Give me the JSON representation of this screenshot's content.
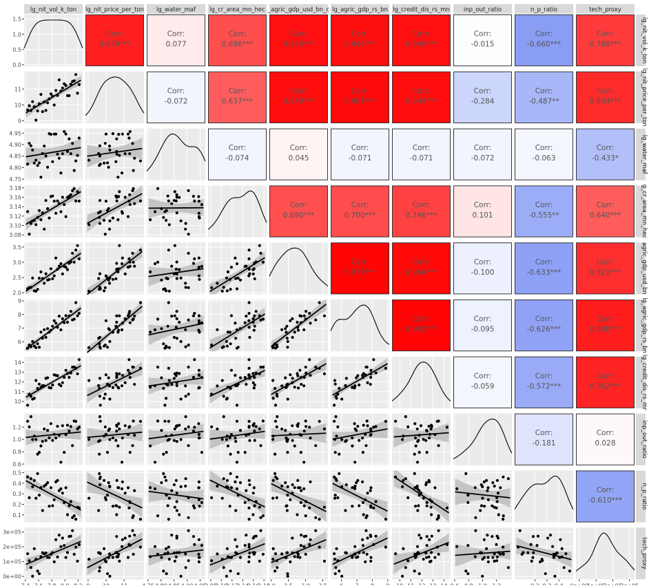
{
  "chart_data": {
    "type": "pair_plot_matrix",
    "variables": [
      "lg_nit_vol_k_ton",
      "lg_nit_price_per_ton",
      "lg_water_maf",
      "lg_cr_area_mn_hec",
      "lg_agric_gdp_usd_bn_c",
      "lg_agric_gdp_rs_bn",
      "lg_credit_dis_rs_mn",
      "inp_out_ratio",
      "n_p_ratio",
      "tech_proxy"
    ],
    "column_labels": [
      "lg_nit_vol_k_ton",
      "lg_nit_price_per_ton",
      "lg_water_maf",
      "lg_cr_area_mn_hec",
      "_agric_gdp_usd_bn_c",
      "lg_agric_gdp_rs_bn",
      "lg_credit_dis_rs_mn",
      "inp_out_ratio",
      "n_p_ratio",
      "tech_proxy"
    ],
    "row_labels": [
      "lg_nit_vol_k_ton",
      "lg_nit_price_per_ton",
      "lg_water_maf",
      "g_cr_area_mn_hec",
      "agric_gdp_usd_bn",
      "lg_agric_gdp_rs_bn",
      "lg_credit_dis_rs_mr",
      "inp_out_ratio",
      "n_p_ratio",
      "tech_proxy"
    ],
    "corr_prefix": "Corr:",
    "correlations": [
      {
        "row": 0,
        "col": 1,
        "value": "0.879***",
        "r": 0.879
      },
      {
        "row": 0,
        "col": 2,
        "value": "0.077",
        "r": 0.077
      },
      {
        "row": 0,
        "col": 3,
        "value": "0.696***",
        "r": 0.696
      },
      {
        "row": 0,
        "col": 4,
        "value": "0.943***",
        "r": 0.943
      },
      {
        "row": 0,
        "col": 5,
        "value": "0.944***",
        "r": 0.944
      },
      {
        "row": 0,
        "col": 6,
        "value": "0.940***",
        "r": 0.94
      },
      {
        "row": 0,
        "col": 7,
        "value": "-0.015",
        "r": -0.015
      },
      {
        "row": 0,
        "col": 8,
        "value": "-0.660***",
        "r": -0.66
      },
      {
        "row": 0,
        "col": 9,
        "value": "0.768***",
        "r": 0.768
      },
      {
        "row": 1,
        "col": 2,
        "value": "-0.072",
        "r": -0.072
      },
      {
        "row": 1,
        "col": 3,
        "value": "0.637***",
        "r": 0.637
      },
      {
        "row": 1,
        "col": 4,
        "value": "0.949***",
        "r": 0.949
      },
      {
        "row": 1,
        "col": 5,
        "value": "0.961***",
        "r": 0.961
      },
      {
        "row": 1,
        "col": 6,
        "value": "0.949***",
        "r": 0.949
      },
      {
        "row": 1,
        "col": 7,
        "value": "-0.284",
        "r": -0.284
      },
      {
        "row": 1,
        "col": 8,
        "value": "-0.487**",
        "r": -0.487
      },
      {
        "row": 1,
        "col": 9,
        "value": "0.834***",
        "r": 0.834
      },
      {
        "row": 2,
        "col": 3,
        "value": "-0.074",
        "r": -0.074
      },
      {
        "row": 2,
        "col": 4,
        "value": "0.045",
        "r": 0.045
      },
      {
        "row": 2,
        "col": 5,
        "value": "-0.071",
        "r": -0.071
      },
      {
        "row": 2,
        "col": 6,
        "value": "-0.071",
        "r": -0.071
      },
      {
        "row": 2,
        "col": 7,
        "value": "-0.072",
        "r": -0.072
      },
      {
        "row": 2,
        "col": 8,
        "value": "-0.063",
        "r": -0.063
      },
      {
        "row": 2,
        "col": 9,
        "value": "-0.433*",
        "r": -0.433
      },
      {
        "row": 3,
        "col": 4,
        "value": "0.690***",
        "r": 0.69
      },
      {
        "row": 3,
        "col": 5,
        "value": "0.700***",
        "r": 0.7
      },
      {
        "row": 3,
        "col": 6,
        "value": "0.746***",
        "r": 0.746
      },
      {
        "row": 3,
        "col": 7,
        "value": "0.101",
        "r": 0.101
      },
      {
        "row": 3,
        "col": 8,
        "value": "-0.555**",
        "r": -0.555
      },
      {
        "row": 3,
        "col": 9,
        "value": "0.640***",
        "r": 0.64
      },
      {
        "row": 4,
        "col": 5,
        "value": "0.979***",
        "r": 0.979
      },
      {
        "row": 4,
        "col": 6,
        "value": "0.964***",
        "r": 0.964
      },
      {
        "row": 4,
        "col": 7,
        "value": "-0.100",
        "r": -0.1
      },
      {
        "row": 4,
        "col": 8,
        "value": "-0.633***",
        "r": -0.633
      },
      {
        "row": 4,
        "col": 9,
        "value": "0.821***",
        "r": 0.821
      },
      {
        "row": 5,
        "col": 6,
        "value": "0.982***",
        "r": 0.982
      },
      {
        "row": 5,
        "col": 7,
        "value": "-0.095",
        "r": -0.095
      },
      {
        "row": 5,
        "col": 8,
        "value": "-0.626***",
        "r": -0.626
      },
      {
        "row": 5,
        "col": 9,
        "value": "0.888***",
        "r": 0.888
      },
      {
        "row": 6,
        "col": 7,
        "value": "-0.059",
        "r": -0.059
      },
      {
        "row": 6,
        "col": 8,
        "value": "-0.572***",
        "r": -0.572
      },
      {
        "row": 6,
        "col": 9,
        "value": "0.862***",
        "r": 0.862
      },
      {
        "row": 7,
        "col": 8,
        "value": "-0.181",
        "r": -0.181
      },
      {
        "row": 7,
        "col": 9,
        "value": "0.028",
        "r": 0.028
      },
      {
        "row": 8,
        "col": 9,
        "value": "-0.610***",
        "r": -0.61
      }
    ],
    "ranges": [
      [
        7.38,
        8.27
      ],
      [
        8.85,
        12.1
      ],
      [
        4.745,
        4.97
      ],
      [
        3.075,
        3.185
      ],
      [
        1.95,
        3.65
      ],
      [
        5.3,
        9.1
      ],
      [
        9.3,
        14.6
      ],
      [
        0.58,
        1.42
      ],
      [
        0.03,
        0.52
      ],
      [
        -20000,
        330000
      ]
    ],
    "y_ticks": [
      {
        "values": [
          0.0,
          0.5,
          1.0,
          1.5
        ],
        "labels": [
          "0.0",
          "0.5",
          "1.0",
          "1.5"
        ],
        "range": [
          -0.05,
          1.65
        ]
      },
      {
        "values": [
          9,
          10,
          11
        ],
        "labels": [
          "9",
          "10",
          "11"
        ]
      },
      {
        "values": [
          4.75,
          4.8,
          4.85,
          4.9,
          4.95
        ],
        "labels": [
          "4.75",
          "4.80",
          "4.85",
          "4.90",
          "4.95"
        ]
      },
      {
        "values": [
          3.08,
          3.1,
          3.12,
          3.14,
          3.16,
          3.18
        ],
        "labels": [
          "3.08",
          "3.10",
          "3.12",
          "3.14",
          "3.16",
          "3.18"
        ]
      },
      {
        "values": [
          2.0,
          2.5,
          3.0,
          3.5
        ],
        "labels": [
          "2.0",
          "2.5",
          "3.0",
          "3.5"
        ]
      },
      {
        "values": [
          6,
          7,
          8,
          9
        ],
        "labels": [
          "6",
          "7",
          "8",
          "9"
        ]
      },
      {
        "values": [
          10,
          11,
          12,
          13,
          14
        ],
        "labels": [
          "10",
          "11",
          "12",
          "13",
          "14"
        ]
      },
      {
        "values": [
          0.6,
          0.8,
          1.0,
          1.2
        ],
        "labels": [
          "0.6",
          "0.8",
          "1.0",
          "1.2"
        ]
      },
      {
        "values": [
          0.1,
          0.2,
          0.3,
          0.4,
          0.5
        ],
        "labels": [
          "0.1",
          "0.2",
          "0.3",
          "0.4",
          "0.5"
        ]
      },
      {
        "values": [
          0,
          100000,
          200000,
          300000
        ],
        "labels": [
          "0e+00",
          "1e+05",
          "2e+05",
          "3e+05"
        ]
      }
    ],
    "x_ticks": [
      {
        "values": [
          7.4,
          7.6,
          7.8,
          8.0,
          8.2
        ],
        "labels": [
          "7.4",
          "7.6",
          "7.8",
          "8.0",
          "8.2"
        ]
      },
      {
        "values": [
          9,
          10,
          11
        ],
        "labels": [
          "9",
          "10",
          "11"
        ]
      },
      {
        "values": [
          4.75,
          4.8,
          4.85,
          4.9,
          4.95
        ],
        "labels": [
          "4.75",
          "4.80",
          "4.85",
          "4.90",
          "4.95"
        ]
      },
      {
        "values": [
          3.08,
          3.1,
          3.12,
          3.14,
          3.16,
          3.18
        ],
        "labels": [
          "3.08",
          "3.10",
          "3.12",
          "3.14",
          "3.16",
          "3.18"
        ]
      },
      {
        "values": [
          2.0,
          2.5,
          3.0,
          3.5
        ],
        "labels": [
          "2.0",
          "2.5",
          "3.0",
          "3.5"
        ]
      },
      {
        "values": [
          6,
          7,
          8,
          9
        ],
        "labels": [
          "6",
          "7",
          "8",
          "9"
        ]
      },
      {
        "values": [
          10,
          11,
          12,
          13,
          14
        ],
        "labels": [
          "10",
          "11",
          "12",
          "13",
          "14"
        ]
      },
      {
        "values": [
          0.6,
          0.8,
          1.0,
          1.2
        ],
        "labels": [
          "0.6",
          "0.8",
          "1.0",
          "1.2"
        ]
      },
      {
        "values": [
          0.2,
          0.3,
          0.4
        ],
        "labels": [
          "0.2",
          "0.3",
          "0.4"
        ]
      },
      {
        "values": [
          0,
          100000,
          200000,
          300000
        ],
        "labels": [
          "0e+00",
          "1e+05",
          "2e+05",
          "3e+05"
        ]
      }
    ],
    "colors": {
      "positive_max": "#ff0000",
      "negative_max": "#4d6bf0",
      "neutral": "#ffffff",
      "panel_bg": "#ebebeb",
      "strip_bg": "#d9d9d9",
      "point": "#000000",
      "smooth_line": "#000000",
      "confidence_band": "#b3b3b3"
    },
    "grid": true
  }
}
